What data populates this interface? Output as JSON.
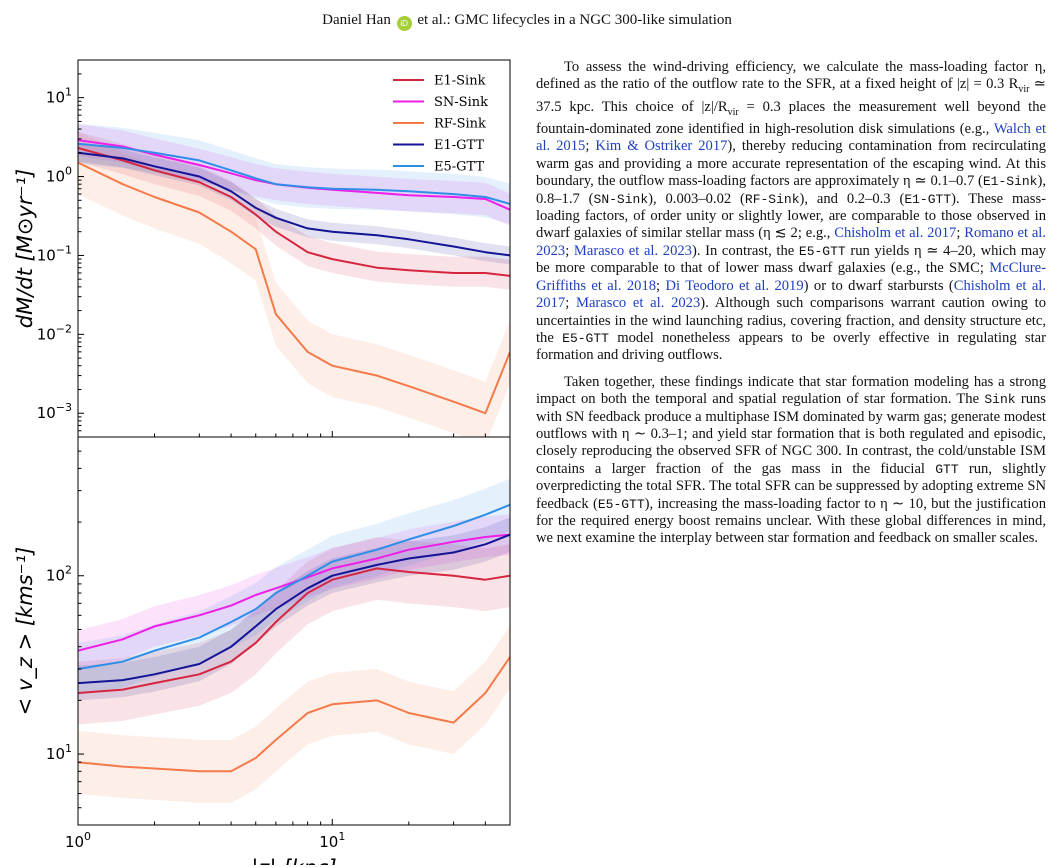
{
  "header": {
    "author": "Daniel Han",
    "orcid_icon": "orcid-icon",
    "rest": "et al.: GMC lifecycles in a NGC 300-like simulation"
  },
  "chart_data": {
    "type": "line",
    "x_scale": "log",
    "xlim": [
      1,
      50
    ],
    "xlabel": "|z| [kpc]",
    "x_ticks": [
      {
        "value": 1,
        "label": "10^0"
      },
      {
        "value": 10,
        "label": "10^1"
      }
    ],
    "legend": {
      "placement": "top-right"
    },
    "colors": {
      "E1-Sink": "#d6263f",
      "SN-Sink": "#ee1fe8",
      "RF-Sink": "#f57a4a",
      "E1-GTT": "#141496",
      "E5-GTT": "#2f8ee8"
    },
    "panels": [
      {
        "id": "top",
        "ylabel": "dM/dt [M⊙yr⁻¹]",
        "y_scale": "log",
        "ylim": [
          0.0005,
          30
        ],
        "y_ticks": [
          {
            "value": 10,
            "label": "10^1"
          },
          {
            "value": 1,
            "label": "10^0"
          },
          {
            "value": 0.1,
            "label": "10^−1"
          },
          {
            "value": 0.01,
            "label": "10^−2"
          },
          {
            "value": 0.001,
            "label": "10^−3"
          }
        ],
        "x": [
          1,
          1.5,
          2,
          3,
          4,
          5,
          6,
          8,
          10,
          15,
          20,
          30,
          40,
          50
        ],
        "series": [
          {
            "name": "E1-Sink",
            "values": [
              2.3,
              1.6,
              1.2,
              0.85,
              0.55,
              0.33,
              0.2,
              0.11,
              0.09,
              0.07,
              0.065,
              0.06,
              0.06,
              0.055
            ],
            "band": [
              1.5,
              1.6
            ]
          },
          {
            "name": "SN-Sink",
            "values": [
              2.9,
              2.4,
              1.9,
              1.4,
              1.1,
              0.9,
              0.8,
              0.72,
              0.68,
              0.62,
              0.58,
              0.55,
              0.52,
              0.38
            ],
            "band": [
              1.6,
              1.6
            ]
          },
          {
            "name": "RF-Sink",
            "values": [
              1.5,
              0.8,
              0.55,
              0.35,
              0.2,
              0.12,
              0.018,
              0.006,
              0.004,
              0.003,
              0.0022,
              0.0014,
              0.001,
              0.006
            ],
            "band": [
              2.5,
              2.5
            ]
          },
          {
            "name": "E1-GTT",
            "values": [
              2.0,
              1.7,
              1.35,
              1.0,
              0.65,
              0.4,
              0.3,
              0.22,
              0.2,
              0.18,
              0.16,
              0.13,
              0.11,
              0.1
            ],
            "band": [
              1.3,
              1.3
            ]
          },
          {
            "name": "E5-GTT",
            "values": [
              2.6,
              2.3,
              2.0,
              1.6,
              1.2,
              0.95,
              0.8,
              0.73,
              0.7,
              0.68,
              0.65,
              0.6,
              0.55,
              0.45
            ],
            "band": [
              1.8,
              1.8
            ]
          }
        ]
      },
      {
        "id": "bottom",
        "ylabel": "< v_z > [kms⁻¹]",
        "y_scale": "log",
        "ylim": [
          4,
          600
        ],
        "y_ticks": [
          {
            "value": 100,
            "label": "10^2"
          },
          {
            "value": 10,
            "label": "10^1"
          }
        ],
        "x": [
          1,
          1.5,
          2,
          3,
          4,
          5,
          6,
          8,
          10,
          15,
          20,
          30,
          40,
          50
        ],
        "series": [
          {
            "name": "E1-Sink",
            "values": [
              22,
              23,
              25,
              28,
              33,
              42,
              55,
              80,
              95,
              110,
              105,
              100,
              95,
              100
            ],
            "band": [
              1.5,
              1.5
            ]
          },
          {
            "name": "SN-Sink",
            "values": [
              38,
              44,
              52,
              60,
              68,
              78,
              85,
              98,
              110,
              125,
              140,
              155,
              165,
              170
            ],
            "band": [
              1.3,
              1.3
            ]
          },
          {
            "name": "RF-Sink",
            "values": [
              9,
              8.5,
              8.3,
              8,
              8,
              9.5,
              12,
              17,
              19,
              20,
              17,
              15,
              22,
              35
            ],
            "band": [
              1.5,
              1.5
            ]
          },
          {
            "name": "E1-GTT",
            "values": [
              25,
              26,
              28,
              32,
              40,
              52,
              65,
              85,
              100,
              115,
              125,
              135,
              150,
              170
            ],
            "band": [
              1.25,
              1.25
            ]
          },
          {
            "name": "E5-GTT",
            "values": [
              30,
              33,
              38,
              45,
              55,
              65,
              80,
              100,
              120,
              140,
              160,
              190,
              220,
              250
            ],
            "band": [
              1.4,
              1.4
            ]
          }
        ]
      }
    ]
  },
  "body": {
    "p1": [
      {
        "t": "To assess the wind-driving efficiency, we calculate the mass-loading factor η, defined as the ratio of the outflow rate to the SFR, at a fixed height of |z| = 0.3 R"
      },
      {
        "t": "vir",
        "sub": true
      },
      {
        "t": " ≃ 37.5 kpc. This choice of |z|/R"
      },
      {
        "t": "vir",
        "sub": true
      },
      {
        "t": " = 0.3 places the measurement well beyond the fountain-dominated zone identified in high-resolution disk simulations (e.g., "
      },
      {
        "t": "Walch et al. 2015",
        "cite": true
      },
      {
        "t": "; "
      },
      {
        "t": "Kim & Ostriker 2017",
        "cite": true
      },
      {
        "t": "), thereby reducing contamination from recirculating warm gas and providing a more accurate representation of the escaping wind. At this boundary, the outflow mass-loading factors are approximately η ≃ 0.1–0.7 ("
      },
      {
        "t": "E1-Sink",
        "mono": true
      },
      {
        "t": "), 0.8–1.7 ("
      },
      {
        "t": "SN-Sink",
        "mono": true
      },
      {
        "t": "), 0.003–0.02 ("
      },
      {
        "t": "RF-Sink",
        "mono": true
      },
      {
        "t": "), and 0.2–0.3 ("
      },
      {
        "t": "E1-GTT",
        "mono": true
      },
      {
        "t": "). These mass-loading factors, of order unity or slightly lower, are comparable to those observed in dwarf galaxies of similar stellar mass (η ≲ 2; e.g., "
      },
      {
        "t": "Chisholm et al. 2017",
        "cite": true
      },
      {
        "t": "; "
      },
      {
        "t": "Romano et al. 2023",
        "cite": true
      },
      {
        "t": "; "
      },
      {
        "t": "Marasco et al. 2023",
        "cite": true
      },
      {
        "t": "). In contrast, the "
      },
      {
        "t": "E5-GTT",
        "mono": true
      },
      {
        "t": " run yields η ≃ 4–20, which may be more comparable to that of lower mass dwarf galaxies (e.g., the SMC; "
      },
      {
        "t": "McClure-Griffiths et al. 2018",
        "cite": true
      },
      {
        "t": "; "
      },
      {
        "t": "Di Teodoro et al. 2019",
        "cite": true
      },
      {
        "t": ") or to dwarf starbursts ("
      },
      {
        "t": "Chisholm et al. 2017",
        "cite": true
      },
      {
        "t": "; "
      },
      {
        "t": "Marasco et al. 2023",
        "cite": true
      },
      {
        "t": "). Although such comparisons warrant caution owing to uncertainties in the wind launching radius, covering fraction, and density structure etc, the "
      },
      {
        "t": "E5-GTT",
        "mono": true
      },
      {
        "t": " model nonetheless appears to be overly effective in regulating star formation and driving outflows."
      }
    ],
    "p2": [
      {
        "t": "Taken together, these findings indicate that star formation modeling has a strong impact on both the temporal and spatial regulation of star formation. The "
      },
      {
        "t": "Sink",
        "mono": true
      },
      {
        "t": " runs with SN feedback produce a multiphase ISM dominated by warm gas; generate modest outflows with η ∼ 0.3–1; and yield star formation that is both regulated and episodic, closely reproducing the observed SFR of NGC 300. In contrast, the cold/unstable ISM contains a larger fraction of the gas mass in the fiducial "
      },
      {
        "t": "GTT",
        "mono": true
      },
      {
        "t": " run, slightly overpredicting the total SFR. The total SFR can be suppressed by adopting extreme SN feedback ("
      },
      {
        "t": "E5-GTT",
        "mono": true
      },
      {
        "t": "), increasing the mass-loading factor to η ∼ 10, but the justification for the required energy boost remains unclear. With these global differences in mind, we next examine the interplay between star formation and feedback on smaller scales."
      }
    ]
  }
}
